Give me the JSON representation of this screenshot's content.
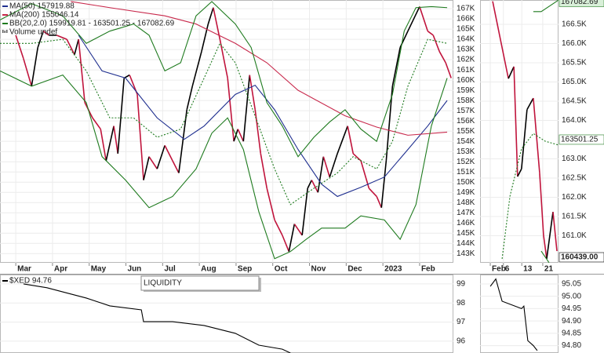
{
  "chart_data": [
    {
      "type": "line",
      "xlim": [
        -0.43,
        11.92
      ],
      "ylim": [
        142100,
        167850
      ],
      "grid": true,
      "xticks": [
        {
          "value": 0,
          "label": "Mar"
        },
        {
          "value": 1,
          "label": "Apr"
        },
        {
          "value": 2,
          "label": "May"
        },
        {
          "value": 3,
          "label": "Jun"
        },
        {
          "value": 4,
          "label": "Jul"
        },
        {
          "value": 5,
          "label": "Aug"
        },
        {
          "value": 6,
          "label": "Sep"
        },
        {
          "value": 7,
          "label": "Oct"
        },
        {
          "value": 8,
          "label": "Nov"
        },
        {
          "value": 9,
          "label": "Dec"
        },
        {
          "value": 10,
          "label": "2023"
        },
        {
          "value": 11,
          "label": "Feb"
        }
      ],
      "yticks": [
        {
          "value": 143000,
          "label": "143K"
        },
        {
          "value": 144000,
          "label": "144K"
        },
        {
          "value": 145000,
          "label": "145K"
        },
        {
          "value": 146000,
          "label": "146K"
        },
        {
          "value": 147000,
          "label": "147K"
        },
        {
          "value": 148000,
          "label": "148K"
        },
        {
          "value": 149000,
          "label": "149K"
        },
        {
          "value": 150000,
          "label": "150K"
        },
        {
          "value": 151000,
          "label": "151K"
        },
        {
          "value": 152000,
          "label": "152K"
        },
        {
          "value": 153000,
          "label": "153K"
        },
        {
          "value": 154000,
          "label": "154K"
        },
        {
          "value": 155000,
          "label": "155K"
        },
        {
          "value": 156000,
          "label": "156K"
        },
        {
          "value": 157000,
          "label": "157K"
        },
        {
          "value": 158000,
          "label": "158K"
        },
        {
          "value": 159000,
          "label": "159K"
        },
        {
          "value": 160000,
          "label": "160K"
        },
        {
          "value": 161000,
          "label": "161K"
        },
        {
          "value": 162000,
          "label": "162K"
        },
        {
          "value": 163000,
          "label": "163K"
        },
        {
          "value": 164000,
          "label": "164K"
        },
        {
          "value": 165000,
          "label": "165K"
        },
        {
          "value": 166000,
          "label": "166K"
        },
        {
          "value": 167000,
          "label": "167K"
        }
      ],
      "legend_extra": "Volume undef",
      "series": [
        {
          "color": "#000000",
          "down_color": "#c0143c",
          "x": [
            0,
            0.21,
            0.43,
            0.6,
            0.75,
            0.9,
            1.11,
            1.39,
            1.6,
            1.71,
            1.88,
            2.09,
            2.31,
            2.46,
            2.67,
            2.78,
            2.95,
            3.1,
            3.31,
            3.48,
            3.63,
            3.85,
            4.06,
            4.27,
            4.44,
            4.66,
            4.81,
            5.06,
            5.24,
            5.38,
            5.56,
            5.77,
            5.94,
            6.05,
            6.2,
            6.37,
            6.52,
            6.67,
            6.84,
            7.05,
            7.26,
            7.44,
            7.59,
            7.8,
            7.95,
            8.06,
            8.23,
            8.38,
            8.55,
            8.76,
            9.04,
            9.19,
            9.4,
            9.62,
            9.83,
            9.96,
            10.09,
            10.26,
            10.47,
            10.68,
            11.0,
            11.22,
            11.37,
            11.54,
            11.71,
            11.86
          ],
          "values": [
            164400,
            162100,
            159400,
            163200,
            164800,
            164400,
            164400,
            164000,
            162500,
            164000,
            157800,
            156300,
            155200,
            152100,
            155500,
            152800,
            160200,
            160500,
            158600,
            150200,
            152500,
            151300,
            153600,
            152100,
            150900,
            157100,
            159400,
            162800,
            165500,
            167100,
            164000,
            160200,
            154000,
            155200,
            154000,
            160500,
            157100,
            152800,
            149400,
            146300,
            144800,
            143200,
            145900,
            144800,
            149400,
            150200,
            149000,
            152500,
            150500,
            152800,
            155500,
            152800,
            152100,
            149400,
            148600,
            147500,
            152100,
            159400,
            163200,
            164800,
            167200,
            164800,
            164400,
            162800,
            161700,
            160200
          ]
        },
        {
          "name": "MA(50) 157919.88",
          "color": "#1f2f8f",
          "x": [
            1.71,
            2.35,
            2.99,
            3.85,
            4.59,
            5.13,
            5.98,
            6.52,
            7.05,
            7.69,
            8.33,
            8.76,
            9.4,
            10.04,
            10.68,
            11.22,
            11.75
          ],
          "values": [
            164400,
            160900,
            160200,
            156300,
            154200,
            155500,
            158600,
            159500,
            157100,
            153200,
            149800,
            148600,
            149500,
            150500,
            153200,
            155500,
            158000
          ]
        },
        {
          "name": "MA(200) 155046.14",
          "color": "#c8284b",
          "x": [
            1.5,
            2.56,
            4.06,
            4.91,
            5.98,
            6.84,
            7.69,
            8.97,
            9.83,
            10.68,
            11.75
          ],
          "values": [
            167700,
            167100,
            166300,
            165500,
            163600,
            161700,
            159000,
            156500,
            155400,
            154600,
            154900
          ]
        },
        {
          "name": "BB(20,2.0) 159919.81 - 163501.25 - 167082.69",
          "color": "#1e7a1e",
          "x": [
            -0.43,
            0.43,
            1.28,
            1.92,
            2.56,
            3.21,
            3.63,
            4.06,
            4.49,
            4.91,
            5.34,
            5.98,
            6.41,
            6.84,
            7.26,
            7.69,
            8.12,
            8.55,
            8.97,
            9.4,
            9.83,
            10.26,
            10.58,
            10.9,
            11.32,
            11.75
          ],
          "values": [
            165900,
            167500,
            166300,
            163600,
            164800,
            165500,
            164400,
            160900,
            161700,
            166300,
            167700,
            165500,
            163200,
            157800,
            155500,
            152500,
            154400,
            155900,
            157100,
            155200,
            154000,
            158600,
            164800,
            167100,
            167200,
            167100
          ]
        },
        {
          "color": "#1e7a1e",
          "dashed": true,
          "x": [
            -0.43,
            0.43,
            1.28,
            1.92,
            2.56,
            3.21,
            3.85,
            4.49,
            5.13,
            5.56,
            5.98,
            6.62,
            7.05,
            7.48,
            8.12,
            8.76,
            9.19,
            9.83,
            10.26,
            10.68,
            11.22,
            11.75
          ],
          "values": [
            163600,
            163600,
            164000,
            160900,
            156300,
            156300,
            154400,
            155200,
            160200,
            163600,
            161700,
            155500,
            151300,
            147800,
            149400,
            150900,
            152500,
            151300,
            154000,
            159400,
            164000,
            163600
          ]
        },
        {
          "color": "#1e7a1e",
          "x": [
            -0.43,
            0.43,
            1.28,
            1.92,
            2.35,
            2.99,
            3.63,
            4.27,
            4.91,
            5.34,
            5.77,
            6.2,
            6.62,
            7.05,
            7.48,
            7.91,
            8.33,
            8.97,
            9.4,
            10.04,
            10.47,
            10.9,
            11.32,
            11.75
          ],
          "values": [
            160900,
            159400,
            160500,
            157800,
            152500,
            150200,
            147500,
            148600,
            151300,
            154800,
            156300,
            153200,
            147100,
            142500,
            143200,
            144400,
            145500,
            145500,
            146700,
            146300,
            144400,
            147800,
            155500,
            160200
          ]
        }
      ]
    },
    {
      "type": "line",
      "xlim": [
        -2.9,
        27
      ],
      "ylim": [
        160296,
        167133
      ],
      "grid": true,
      "xticks": [
        {
          "value": 1,
          "label": "Feb"
        },
        6,
        13,
        21
      ],
      "yticks": [
        {
          "value": 161000,
          "label": "161.0K"
        },
        {
          "value": 161500,
          "label": "161.5K"
        },
        {
          "value": 162000,
          "label": "162.0K"
        },
        {
          "value": 162500,
          "label": "162.5K"
        },
        {
          "value": 163000,
          "label": "163.0K"
        },
        {
          "value": 164000,
          "label": "164.0K"
        },
        {
          "value": 164500,
          "label": "164.5K"
        },
        {
          "value": 165000,
          "label": "165.0K"
        },
        {
          "value": 165500,
          "label": "165.5K"
        },
        {
          "value": 166000,
          "label": "166.0K"
        },
        {
          "value": 166500,
          "label": "166.5K"
        }
      ],
      "badges": [
        167082.69,
        163501.25,
        {
          "value": 160439,
          "label": "160439.00"
        }
      ],
      "badge_colors": [
        "#1e7a1e",
        "#1e7a1e",
        "#000000"
      ],
      "series": [
        {
          "color": "#000000",
          "down_color": "#c0143c",
          "x": [
            1.9,
            7.9,
            10,
            11.4,
            12.9,
            15,
            17.4,
            19.8,
            21.3,
            22.5,
            24.9,
            26.4
          ],
          "values": [
            167100,
            165090,
            165400,
            162540,
            162740,
            164280,
            164580,
            162640,
            161010,
            160400,
            161620,
            160600
          ]
        },
        {
          "color": "#1e7a1e",
          "x": [
            17.4,
            20.4,
            27
          ],
          "values": [
            166830,
            166830,
            167130
          ]
        },
        {
          "color": "#1e7a1e",
          "dashed": true,
          "x": [
            5.5,
            8.5,
            12.9,
            17.4,
            21.9,
            27
          ],
          "values": [
            160400,
            162030,
            163260,
            163660,
            163460,
            163360
          ]
        },
        {
          "color": "#1e7a1e",
          "x": [
            20.4,
            23.4
          ],
          "values": [
            160600,
            160300
          ]
        }
      ]
    },
    {
      "type": "line",
      "xlim": [
        -0.43,
        11.92
      ],
      "ylim": [
        95.38,
        99.49
      ],
      "grid": true,
      "yticks": [
        96,
        97,
        98,
        99
      ],
      "annotation": "LIQUIDITY",
      "series": [
        {
          "name": "$XED 94.76",
          "color": "#000000",
          "x": [
            0.21,
            0.85,
            1.5,
            1.92,
            2.56,
            3.42,
            3.48,
            4.27,
            5.13,
            5.98,
            6.62,
            7.26,
            7.48
          ],
          "values": [
            99.0,
            98.8,
            98.47,
            98.26,
            97.85,
            97.64,
            97.02,
            97.02,
            96.82,
            96.41,
            95.79,
            95.58,
            95.38
          ]
        }
      ]
    },
    {
      "type": "line",
      "xlim": [
        -2.9,
        27
      ],
      "ylim": [
        94.77,
        95.088
      ],
      "grid": true,
      "yticks": [
        {
          "value": 94.8,
          "label": "94.80"
        },
        94.85,
        {
          "value": 94.9,
          "label": "94.90"
        },
        94.95,
        {
          "value": 95,
          "label": "95.00"
        },
        95.05
      ],
      "series": [
        {
          "color": "#000000",
          "x": [
            1,
            3.1,
            5.5,
            12.9,
            13.8,
            15.3,
            17.4,
            18.9
          ],
          "values": [
            95.04,
            95.07,
            94.98,
            94.95,
            94.96,
            94.82,
            94.8,
            94.78
          ]
        }
      ]
    }
  ]
}
